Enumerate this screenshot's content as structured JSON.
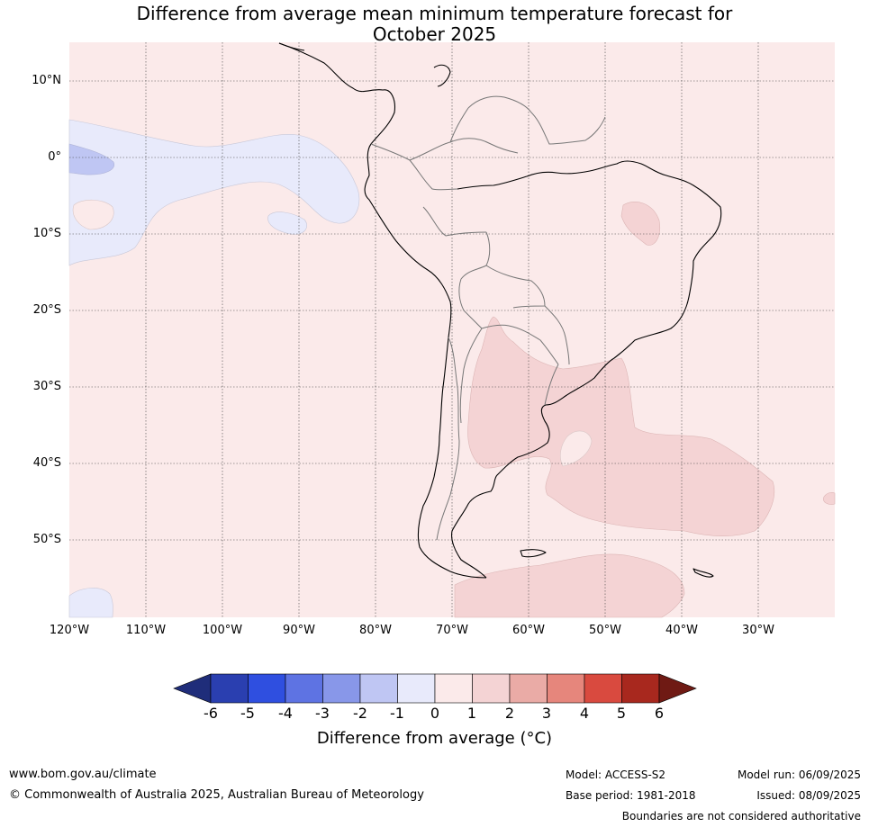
{
  "title": {
    "line1": "Difference from average mean minimum temperature forecast for",
    "line2": "October 2025"
  },
  "axes": {
    "lat_labels": [
      "10°N",
      "0°",
      "10°S",
      "20°S",
      "30°S",
      "40°S",
      "50°S"
    ],
    "lon_labels": [
      "120°W",
      "110°W",
      "100°W",
      "90°W",
      "80°W",
      "70°W",
      "60°W",
      "50°W",
      "40°W",
      "30°W"
    ]
  },
  "map": {
    "lon_range": [
      -120,
      -20
    ],
    "lat_range": [
      -60,
      15
    ],
    "background_category": "0 to 1",
    "regions": [
      {
        "category": "-1 to 0",
        "where": "eastern equatorial Pacific west of Ecuador"
      },
      {
        "category": "-2 to -1",
        "where": "equatorial Pacific near 120°W"
      },
      {
        "category": "-1 to 0",
        "where": "far south-west Pacific near 120°W 55°S"
      },
      {
        "category": "1 to 2",
        "where": "north-east Brazil"
      },
      {
        "category": "1 to 2",
        "where": "northern Argentina, Uruguay, south-west Atlantic"
      },
      {
        "category": "1 to 2",
        "where": "Drake Passage / Scotia Sea"
      }
    ]
  },
  "colorbar": {
    "ticks": [
      "-6",
      "-5",
      "-4",
      "-3",
      "-2",
      "-1",
      "0",
      "1",
      "2",
      "3",
      "4",
      "5",
      "6"
    ],
    "colors": [
      "#1f2d7a",
      "#2a3fb0",
      "#2f4fe0",
      "#5e73e3",
      "#8897e9",
      "#bfc6f3",
      "#e8eafb",
      "#fbeaea",
      "#f4d3d4",
      "#eaaba6",
      "#e6867c",
      "#d94a3f",
      "#a8281e",
      "#6f1a14"
    ],
    "label": "Difference from average (°C)"
  },
  "footer": {
    "website": "www.bom.gov.au/climate",
    "copyright": "© Commonwealth of Australia 2025, Australian Bureau of Meteorology",
    "model": "Model: ACCESS-S2",
    "base_period": "Base period: 1981-2018",
    "model_run": "Model run: 06/09/2025",
    "issued": "Issued: 08/09/2025",
    "disclaimer": "Boundaries are not considered authoritative"
  }
}
